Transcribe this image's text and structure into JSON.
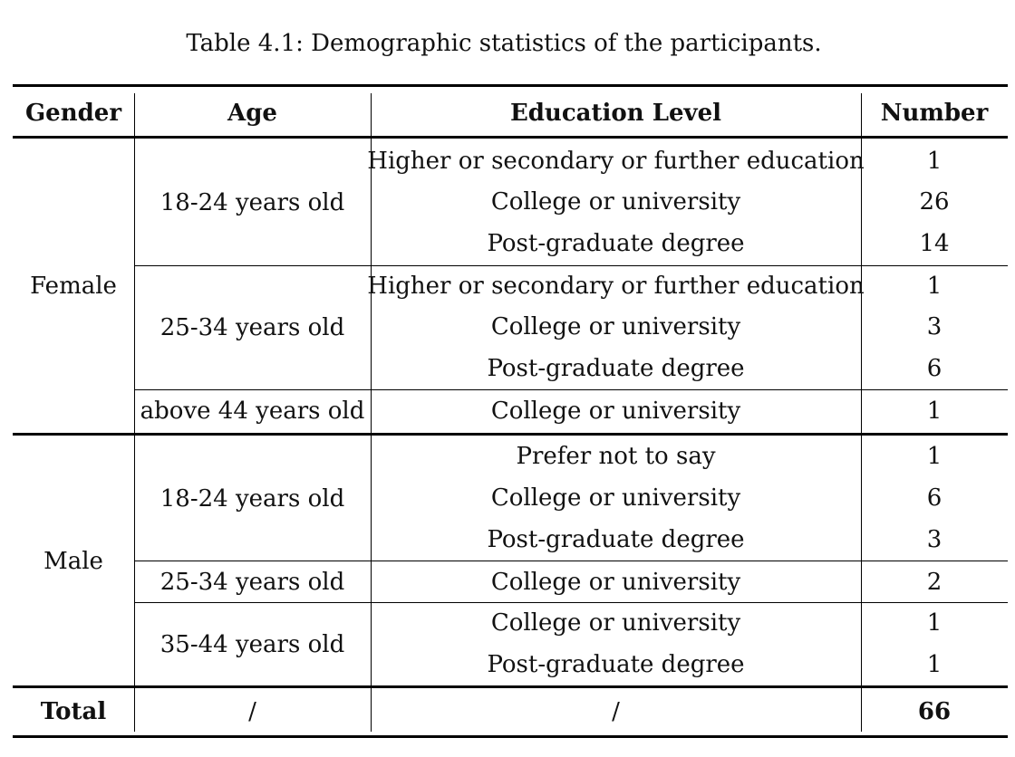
{
  "caption": "Table 4.1: Demographic statistics of the participants.",
  "headers": {
    "gender": "Gender",
    "age": "Age",
    "education": "Education Level",
    "number": "Number"
  },
  "female": {
    "label": "Female",
    "age_18_24": {
      "label": "18-24 years old",
      "rows": [
        {
          "education": "Higher or secondary or further education",
          "number": "1"
        },
        {
          "education": "College or university",
          "number": "26"
        },
        {
          "education": "Post-graduate degree",
          "number": "14"
        }
      ]
    },
    "age_25_34": {
      "label": "25-34 years old",
      "rows": [
        {
          "education": "Higher or secondary or further education",
          "number": "1"
        },
        {
          "education": "College or university",
          "number": "3"
        },
        {
          "education": "Post-graduate degree",
          "number": "6"
        }
      ]
    },
    "age_above_44": {
      "label": "above 44 years old",
      "rows": [
        {
          "education": "College or university",
          "number": "1"
        }
      ]
    }
  },
  "male": {
    "label": "Male",
    "age_18_24": {
      "label": "18-24 years old",
      "rows": [
        {
          "education": "Prefer not to say",
          "number": "1"
        },
        {
          "education": "College or university",
          "number": "6"
        },
        {
          "education": "Post-graduate degree",
          "number": "3"
        }
      ]
    },
    "age_25_34": {
      "label": "25-34 years old",
      "rows": [
        {
          "education": "College or university",
          "number": "2"
        }
      ]
    },
    "age_35_44": {
      "label": "35-44 years old",
      "rows": [
        {
          "education": "College or university",
          "number": "1"
        },
        {
          "education": "Post-graduate degree",
          "number": "1"
        }
      ]
    }
  },
  "total": {
    "label": "Total",
    "age": "/",
    "education": "/",
    "number": "66"
  }
}
